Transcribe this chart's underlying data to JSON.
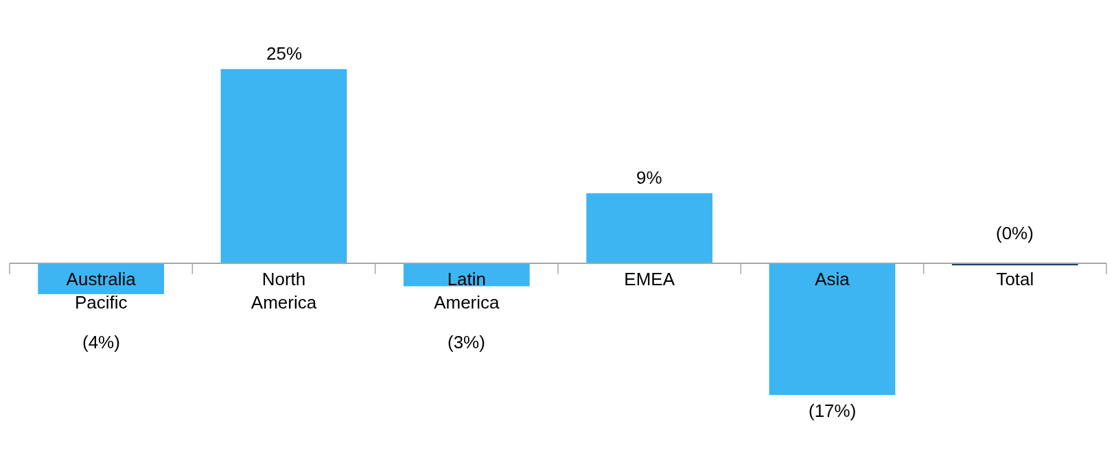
{
  "chart_data": {
    "type": "bar",
    "categories": [
      "Australia Pacific",
      "North America",
      "Latin America",
      "EMEA",
      "Asia",
      "Total"
    ],
    "values": [
      -4,
      25,
      -3,
      9,
      -17,
      -0.3
    ],
    "colors": [
      "#3db5f2",
      "#3db5f2",
      "#3db5f2",
      "#3db5f2",
      "#3db5f2",
      "#1b3f6e"
    ],
    "value_labels": [
      "(4%)",
      "25%",
      "(3%)",
      "9%",
      "(17%)",
      "(0%)"
    ],
    "grid": false
  }
}
